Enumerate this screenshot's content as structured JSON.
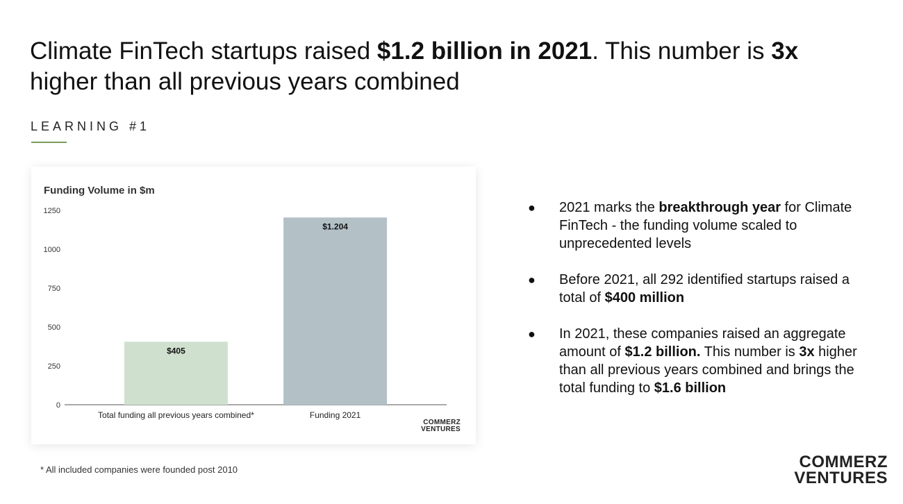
{
  "header": {
    "title_parts": [
      {
        "text": "Climate FinTech startups raised ",
        "bold": false
      },
      {
        "text": "$1.2 billion in 2021",
        "bold": true
      },
      {
        "text": ". This number is ",
        "bold": false
      },
      {
        "text": "3x",
        "bold": true
      },
      {
        "text": " higher than all previous years combined",
        "bold": false
      }
    ],
    "section_label": "LEARNING #1",
    "accent_color": "#7a9c5a"
  },
  "chart_data": {
    "type": "bar",
    "title": "Funding Volume in $m",
    "categories": [
      "Total funding all previous years combined*",
      "Funding 2021"
    ],
    "values": [
      405,
      1204
    ],
    "data_labels": [
      "$405",
      "$1.204"
    ],
    "bar_colors": [
      "#cfe0cf",
      "#b3c1c7"
    ],
    "ylim": [
      0,
      1250
    ],
    "yticks": [
      0,
      250,
      500,
      750,
      1000,
      1250
    ],
    "grid": false,
    "logo_lines": [
      "COMMERZ",
      "VENTURES"
    ]
  },
  "footnote": "* All included companies were founded post 2010",
  "bullets": [
    [
      {
        "text": "2021 marks the ",
        "bold": false
      },
      {
        "text": "breakthrough year",
        "bold": true
      },
      {
        "text": " for Climate FinTech - the funding volume scaled to unprecedented levels",
        "bold": false
      }
    ],
    [
      {
        "text": "Before 2021, all 292 identified startups raised a total of ",
        "bold": false
      },
      {
        "text": "$400 million",
        "bold": true
      }
    ],
    [
      {
        "text": "In 2021, these companies raised an aggregate amount of ",
        "bold": false
      },
      {
        "text": "$1.2 billion.",
        "bold": true
      },
      {
        "text": " This number is ",
        "bold": false
      },
      {
        "text": "3x",
        "bold": true
      },
      {
        "text": " higher than all previous years combined and brings the total funding to ",
        "bold": false
      },
      {
        "text": "$1.6 billion",
        "bold": true
      }
    ]
  ],
  "bullet_glyph": "●",
  "brand": {
    "line1": "COMMERZ",
    "line2": "VENTURES"
  }
}
